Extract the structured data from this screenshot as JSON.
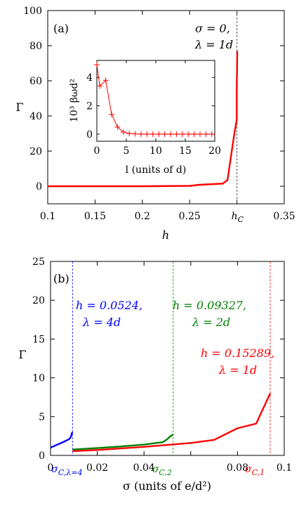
{
  "chart_data": [
    {
      "type": "line",
      "panel_label": "(a)",
      "xlabel": "h",
      "ylabel": "Γ",
      "xlim": [
        0.1,
        0.35
      ],
      "ylim": [
        -10,
        100
      ],
      "xticks": [
        0.1,
        0.15,
        0.2,
        0.25,
        0.3,
        0.35
      ],
      "xtick_labels": [
        "0.1",
        "0.15",
        "0.2",
        "0.25",
        "",
        "0.35"
      ],
      "yticks": [
        0,
        20,
        40,
        60,
        80,
        100
      ],
      "ytick_labels": [
        "0",
        "20",
        "40",
        "60",
        "80",
        "100"
      ],
      "annotation": [
        "σ = 0,",
        "λ = 1d"
      ],
      "hc": {
        "x": 0.3,
        "label": "h",
        "sub": "C"
      },
      "series": [
        {
          "color": "#ff0000",
          "x": [
            0.1,
            0.15,
            0.2,
            0.25,
            0.26,
            0.285,
            0.29,
            0.297,
            0.2998,
            0.2998,
            0.3001,
            0.3003
          ],
          "y": [
            0,
            0,
            0,
            0.2,
            0.8,
            1.5,
            3.5,
            29,
            38,
            58,
            65,
            77
          ]
        }
      ],
      "inset": {
        "xlabel": "l (units of d)",
        "ylabel": "10³ βωd²",
        "xlim": [
          0,
          20
        ],
        "ylim": [
          -0.5,
          5.2
        ],
        "xticks": [
          0,
          5,
          10,
          15,
          20
        ],
        "yticks": [
          0,
          2,
          4
        ],
        "series": [
          {
            "color": "#ff0000",
            "x": [
              0,
              0.5,
              1.5,
              2.5,
              3.5,
              4.5,
              5.5,
              6.5,
              7.5,
              8.5,
              9.5,
              10.5,
              11.5,
              12.5,
              13.5,
              14.5,
              15.5,
              16.5,
              17.5,
              18.5,
              19.5
            ],
            "y": [
              4.9,
              3.4,
              3.8,
              1.4,
              0.5,
              0.15,
              0.05,
              0.02,
              0,
              0,
              0,
              0,
              0,
              0,
              0,
              0,
              0,
              0,
              0,
              0,
              0
            ]
          }
        ]
      }
    },
    {
      "type": "line",
      "panel_label": "(b)",
      "xlabel": "σ (units of e/d²)",
      "ylabel": "Γ",
      "xlim": [
        0,
        0.1
      ],
      "ylim": [
        0,
        25
      ],
      "xticks": [
        0,
        0.02,
        0.04,
        0.06,
        0.08,
        0.1
      ],
      "xtick_labels": [
        "0",
        "0.02",
        "0.04",
        "",
        "0.08",
        "0.1"
      ],
      "yticks": [
        0,
        5,
        10,
        15,
        20,
        25
      ],
      "ytick_labels": [
        "0",
        "5",
        "10",
        "15",
        "20",
        "25"
      ],
      "critical_lines": [
        {
          "x": 0.0094,
          "color": "#0000ff",
          "label": "σ",
          "sub": "C,λ=4"
        },
        {
          "x": 0.0525,
          "color": "#008000",
          "label": "σ",
          "sub": "C,2"
        },
        {
          "x": 0.094,
          "color": "#ff0000",
          "label": "σ",
          "sub": "C,1"
        }
      ],
      "annotations": [
        {
          "color": "#0000ff",
          "lines": [
            "h = 0.0524,",
            "λ = 4d"
          ]
        },
        {
          "color": "#008000",
          "lines": [
            "h = 0.09327,",
            "λ = 2d"
          ]
        },
        {
          "color": "#ff0000",
          "lines": [
            "h = 0.15289,",
            "λ = 1d"
          ]
        }
      ],
      "series": [
        {
          "name": "λ = 4d",
          "color": "#0000ff",
          "x": [
            0.0,
            0.003,
            0.006,
            0.008,
            0.0085,
            0.0088,
            0.009,
            0.0092,
            0.0094
          ],
          "y": [
            1.0,
            1.4,
            1.8,
            2.1,
            2.3,
            2.5,
            2.7,
            2.9,
            3.0
          ]
        },
        {
          "name": "λ = 2d",
          "color": "#008000",
          "x": [
            0.0094,
            0.02,
            0.03,
            0.04,
            0.048,
            0.05,
            0.051,
            0.052,
            0.0525
          ],
          "y": [
            0.75,
            0.95,
            1.15,
            1.4,
            1.7,
            2.1,
            2.4,
            2.6,
            2.7
          ]
        },
        {
          "name": "λ = 1d",
          "color": "#ff0000",
          "x": [
            0.0094,
            0.02,
            0.03,
            0.04,
            0.05,
            0.06,
            0.07,
            0.08,
            0.088,
            0.09,
            0.094
          ],
          "y": [
            0.55,
            0.7,
            0.9,
            1.1,
            1.35,
            1.6,
            2.0,
            3.5,
            4.1,
            5.4,
            8.0
          ]
        }
      ]
    }
  ]
}
